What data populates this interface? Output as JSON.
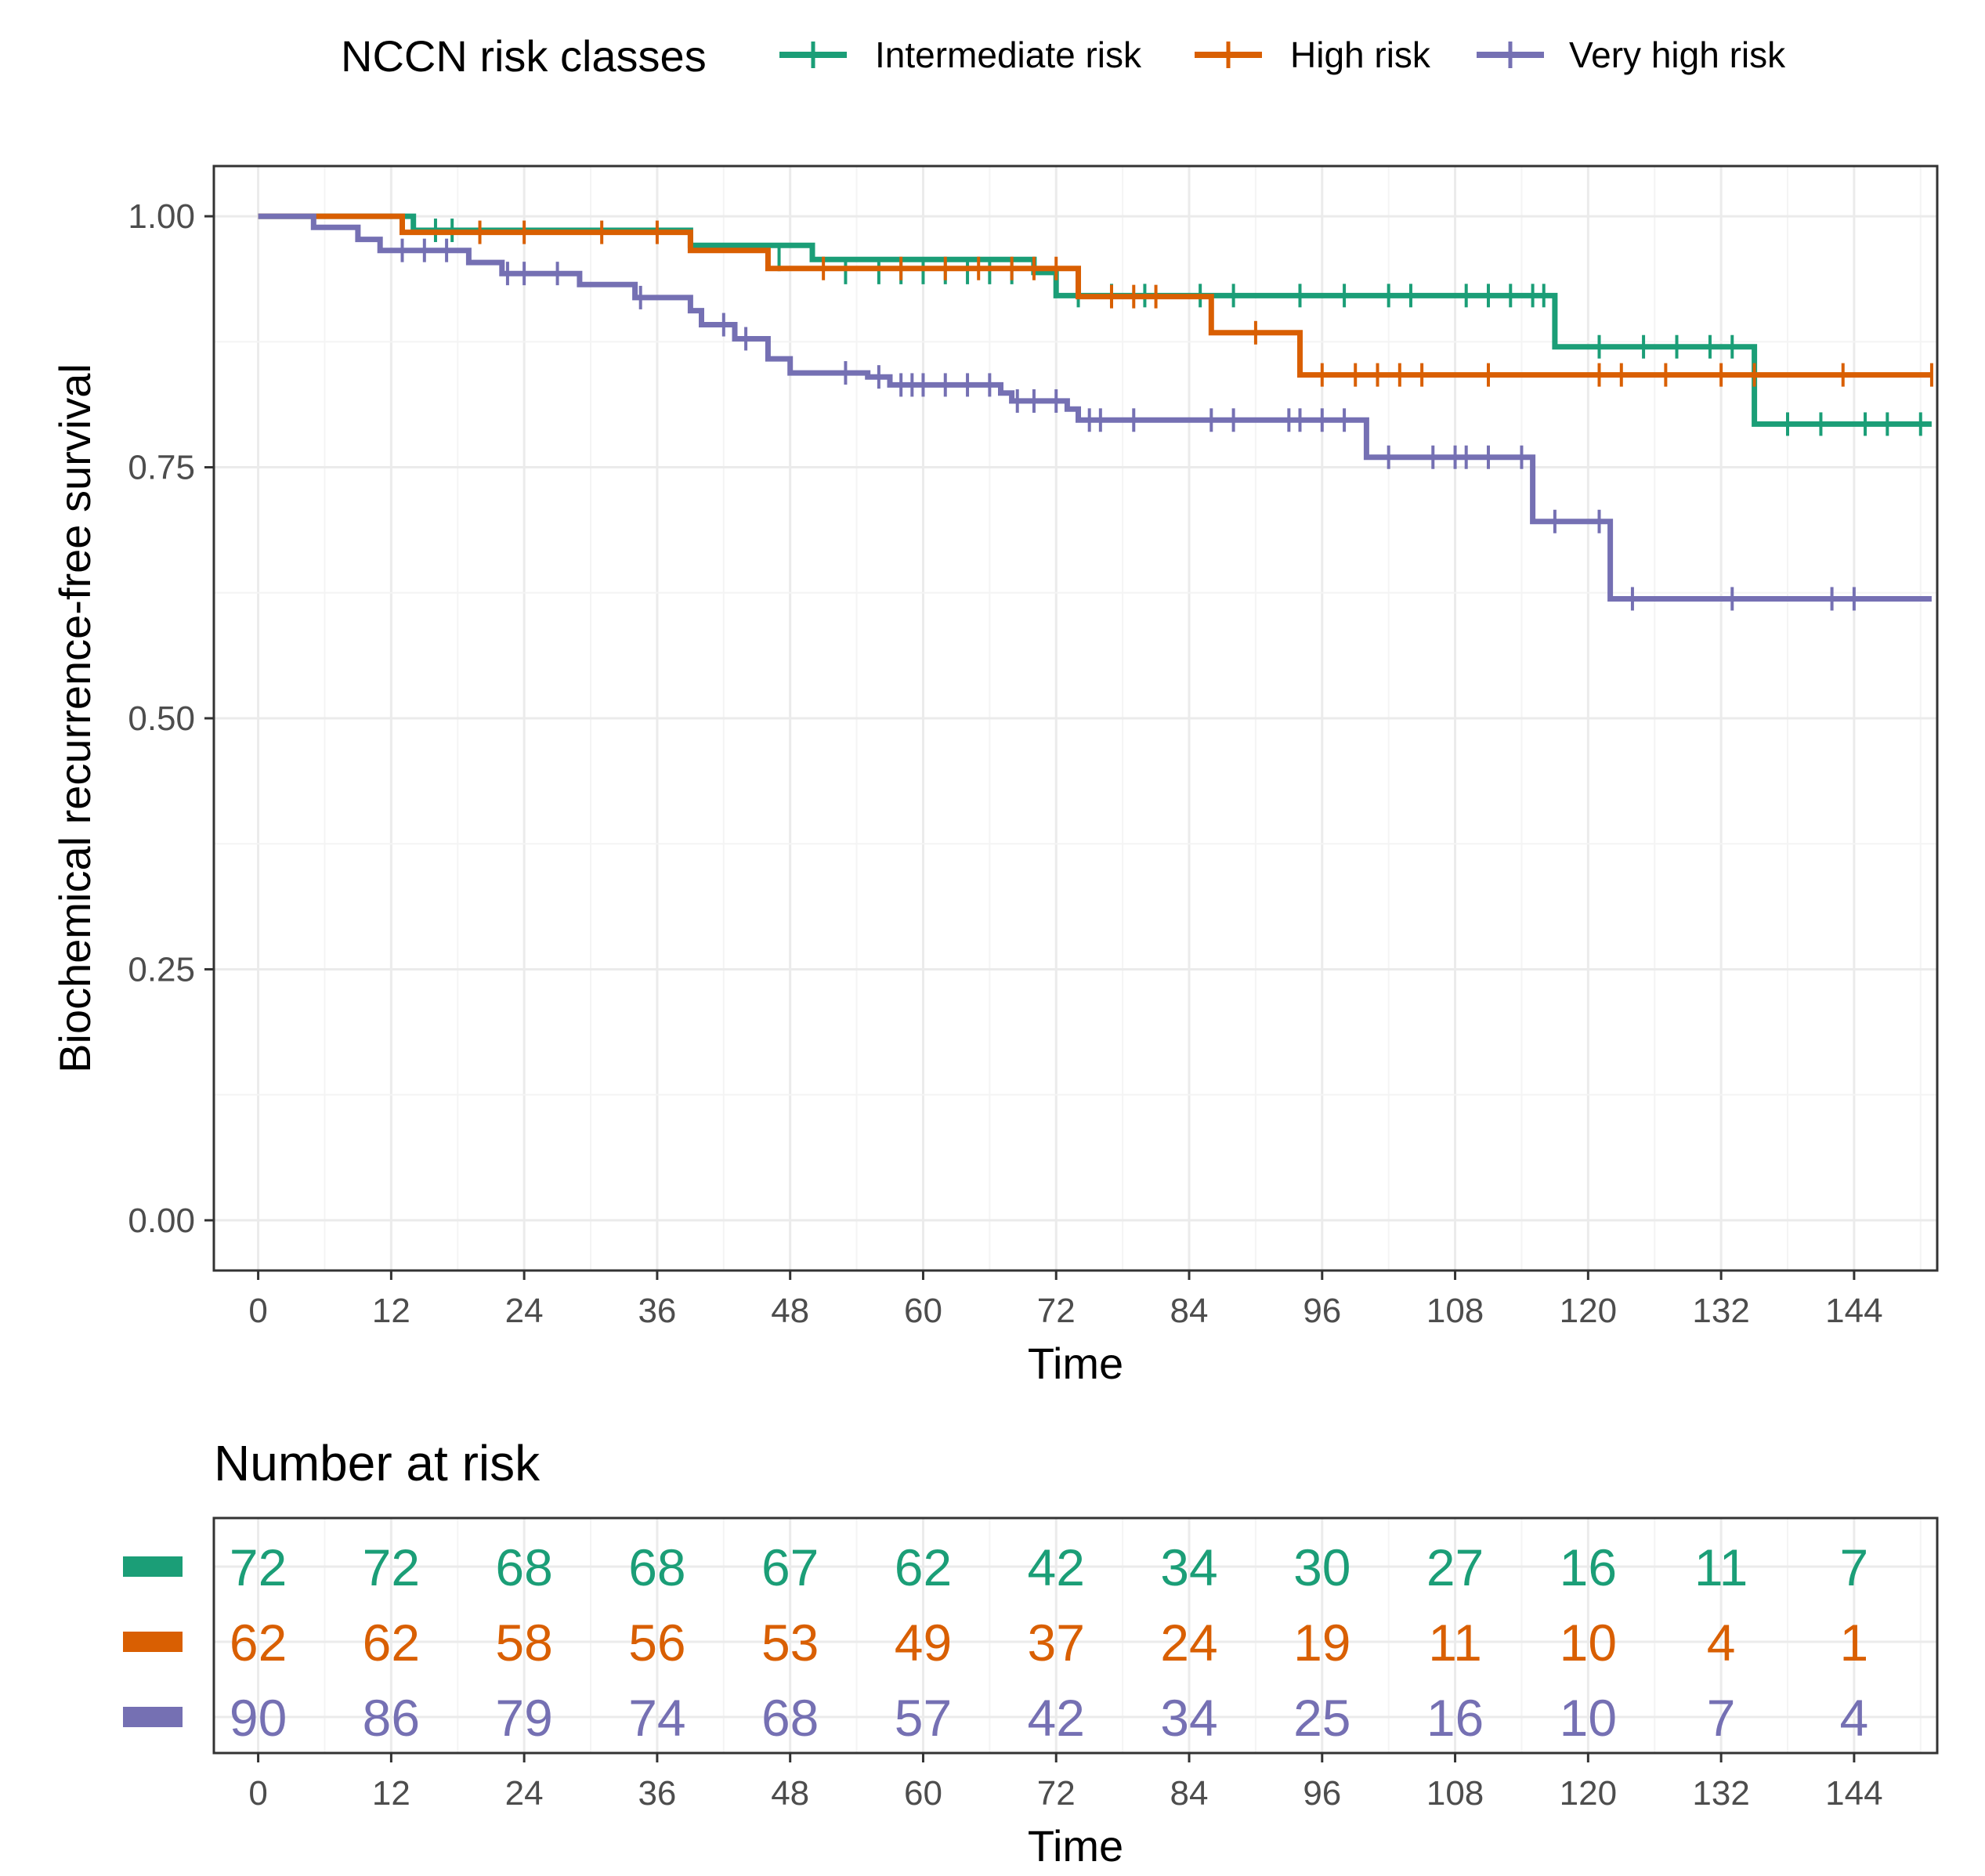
{
  "chart_data": {
    "type": "line",
    "subtype": "kaplan-meier step",
    "legend": {
      "title": "NCCN risk classes",
      "position": "top",
      "entries": [
        "Intermediate risk",
        "High risk",
        "Very high risk"
      ]
    },
    "xlabel": "Time",
    "ylabel": "Biochemical recurrence-free survival",
    "xlim": [
      -4,
      151.5
    ],
    "ylim": [
      -0.05,
      1.05
    ],
    "x_ticks": [
      0,
      12,
      24,
      36,
      48,
      60,
      72,
      84,
      96,
      108,
      120,
      132,
      144
    ],
    "y_ticks": [
      0,
      0.25,
      0.5,
      0.75,
      1
    ],
    "y_tick_labels": [
      "0.00",
      "0.25",
      "0.50",
      "0.75",
      "1.00"
    ],
    "grid": true,
    "series": [
      {
        "name": "Intermediate risk",
        "color": "#1b9e77",
        "steps": [
          [
            0,
            1.0
          ],
          [
            14,
            0.986
          ],
          [
            39,
            0.971
          ],
          [
            50,
            0.957
          ],
          [
            70,
            0.944
          ],
          [
            72,
            0.921
          ],
          [
            86,
            0.921
          ],
          [
            117,
            0.87
          ],
          [
            135,
            0.793
          ],
          [
            151,
            0.793
          ]
        ],
        "censor": [
          [
            16,
            0.986
          ],
          [
            17.5,
            0.986
          ],
          [
            47,
            0.957
          ],
          [
            53,
            0.944
          ],
          [
            56,
            0.944
          ],
          [
            58,
            0.944
          ],
          [
            60,
            0.944
          ],
          [
            62,
            0.944
          ],
          [
            64,
            0.944
          ],
          [
            66,
            0.944
          ],
          [
            68,
            0.944
          ],
          [
            74,
            0.921
          ],
          [
            77,
            0.921
          ],
          [
            80,
            0.921
          ],
          [
            85,
            0.921
          ],
          [
            88,
            0.921
          ],
          [
            94,
            0.921
          ],
          [
            98,
            0.921
          ],
          [
            102,
            0.921
          ],
          [
            104,
            0.921
          ],
          [
            109,
            0.921
          ],
          [
            111,
            0.921
          ],
          [
            113,
            0.921
          ],
          [
            115,
            0.921
          ],
          [
            116,
            0.921
          ],
          [
            121,
            0.87
          ],
          [
            125,
            0.87
          ],
          [
            128,
            0.87
          ],
          [
            131,
            0.87
          ],
          [
            133,
            0.87
          ],
          [
            138,
            0.793
          ],
          [
            141,
            0.793
          ],
          [
            145,
            0.793
          ],
          [
            147,
            0.793
          ],
          [
            150,
            0.793
          ]
        ]
      },
      {
        "name": "High risk",
        "color": "#d95f02",
        "steps": [
          [
            0,
            1.0
          ],
          [
            13,
            0.984
          ],
          [
            39,
            0.966
          ],
          [
            46,
            0.948
          ],
          [
            74,
            0.92
          ],
          [
            86,
            0.884
          ],
          [
            94,
            0.842
          ],
          [
            151,
            0.842
          ]
        ],
        "censor": [
          [
            20,
            0.984
          ],
          [
            24,
            0.984
          ],
          [
            31,
            0.984
          ],
          [
            36,
            0.984
          ],
          [
            51,
            0.948
          ],
          [
            58,
            0.948
          ],
          [
            62,
            0.948
          ],
          [
            65,
            0.948
          ],
          [
            68,
            0.948
          ],
          [
            70,
            0.948
          ],
          [
            72,
            0.948
          ],
          [
            77,
            0.92
          ],
          [
            79,
            0.92
          ],
          [
            81,
            0.92
          ],
          [
            90,
            0.884
          ],
          [
            96,
            0.842
          ],
          [
            99,
            0.842
          ],
          [
            101,
            0.842
          ],
          [
            103,
            0.842
          ],
          [
            105,
            0.842
          ],
          [
            111,
            0.842
          ],
          [
            121,
            0.842
          ],
          [
            123,
            0.842
          ],
          [
            127,
            0.842
          ],
          [
            132,
            0.842
          ],
          [
            135,
            0.842
          ],
          [
            143,
            0.842
          ],
          [
            151,
            0.842
          ]
        ]
      },
      {
        "name": "Very high risk",
        "color": "#7570b3",
        "steps": [
          [
            0,
            1.0
          ],
          [
            5,
            0.989
          ],
          [
            9,
            0.977
          ],
          [
            11,
            0.966
          ],
          [
            19,
            0.954
          ],
          [
            22,
            0.943
          ],
          [
            29,
            0.932
          ],
          [
            34,
            0.919
          ],
          [
            39,
            0.906
          ],
          [
            40,
            0.892
          ],
          [
            43,
            0.878
          ],
          [
            46,
            0.858
          ],
          [
            48,
            0.844
          ],
          [
            55,
            0.84
          ],
          [
            57,
            0.832
          ],
          [
            67,
            0.824
          ],
          [
            68,
            0.816
          ],
          [
            73,
            0.808
          ],
          [
            74,
            0.797
          ],
          [
            100,
            0.76
          ],
          [
            115,
            0.696
          ],
          [
            122,
            0.619
          ],
          [
            151,
            0.619
          ]
        ],
        "censor": [
          [
            13,
            0.966
          ],
          [
            15,
            0.966
          ],
          [
            17,
            0.966
          ],
          [
            22.5,
            0.943
          ],
          [
            24,
            0.943
          ],
          [
            27,
            0.943
          ],
          [
            34.5,
            0.919
          ],
          [
            42,
            0.892
          ],
          [
            44,
            0.878
          ],
          [
            53,
            0.844
          ],
          [
            56,
            0.84
          ],
          [
            58,
            0.832
          ],
          [
            59,
            0.832
          ],
          [
            60,
            0.832
          ],
          [
            62,
            0.832
          ],
          [
            64,
            0.832
          ],
          [
            66,
            0.832
          ],
          [
            68.5,
            0.816
          ],
          [
            70,
            0.816
          ],
          [
            72,
            0.816
          ],
          [
            75,
            0.797
          ],
          [
            76,
            0.797
          ],
          [
            79,
            0.797
          ],
          [
            86,
            0.797
          ],
          [
            88,
            0.797
          ],
          [
            93,
            0.797
          ],
          [
            94,
            0.797
          ],
          [
            96,
            0.797
          ],
          [
            98,
            0.797
          ],
          [
            102,
            0.76
          ],
          [
            106,
            0.76
          ],
          [
            108,
            0.76
          ],
          [
            109,
            0.76
          ],
          [
            111,
            0.76
          ],
          [
            114,
            0.76
          ],
          [
            117,
            0.696
          ],
          [
            121,
            0.696
          ],
          [
            124,
            0.619
          ],
          [
            133,
            0.619
          ],
          [
            142,
            0.619
          ],
          [
            144,
            0.619
          ]
        ]
      }
    ],
    "risk_table": {
      "title": "Number at risk",
      "xlabel": "Time",
      "time_points": [
        0,
        12,
        24,
        36,
        48,
        60,
        72,
        84,
        96,
        108,
        120,
        132,
        144
      ],
      "rows": [
        {
          "name": "Intermediate risk",
          "values": [
            72,
            72,
            68,
            68,
            67,
            62,
            42,
            34,
            30,
            27,
            16,
            11,
            7
          ]
        },
        {
          "name": "High risk",
          "values": [
            62,
            62,
            58,
            56,
            53,
            49,
            37,
            24,
            19,
            11,
            10,
            4,
            1
          ]
        },
        {
          "name": "Very high risk",
          "values": [
            90,
            86,
            79,
            74,
            68,
            57,
            42,
            34,
            25,
            16,
            10,
            7,
            4
          ]
        }
      ]
    }
  }
}
